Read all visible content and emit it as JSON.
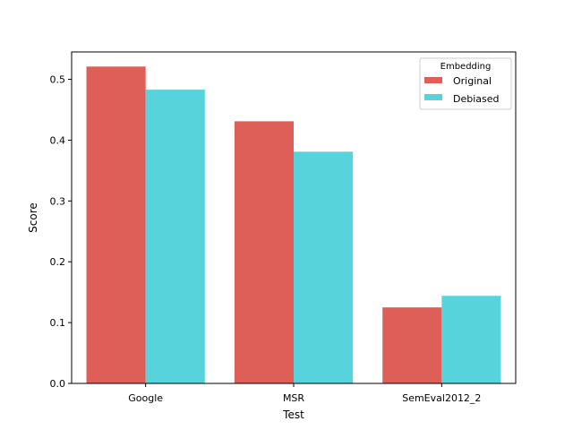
{
  "chart_data": {
    "type": "bar",
    "title": "",
    "xlabel": "Test",
    "ylabel": "Score",
    "categories": [
      "Google",
      "MSR",
      "SemEval2012_2"
    ],
    "series": [
      {
        "name": "Original",
        "values": [
          0.521,
          0.431,
          0.125
        ],
        "color": "#dd5f57"
      },
      {
        "name": "Debiased",
        "values": [
          0.483,
          0.381,
          0.144
        ],
        "color": "#57d3db"
      }
    ],
    "ylim": [
      0,
      0.545
    ],
    "yticks": [
      0.0,
      0.1,
      0.2,
      0.3,
      0.4,
      0.5
    ],
    "ytick_labels": [
      "0.0",
      "0.1",
      "0.2",
      "0.3",
      "0.4",
      "0.5"
    ],
    "grid": false,
    "legend": {
      "title": "Embedding",
      "placement": "top-right"
    }
  }
}
